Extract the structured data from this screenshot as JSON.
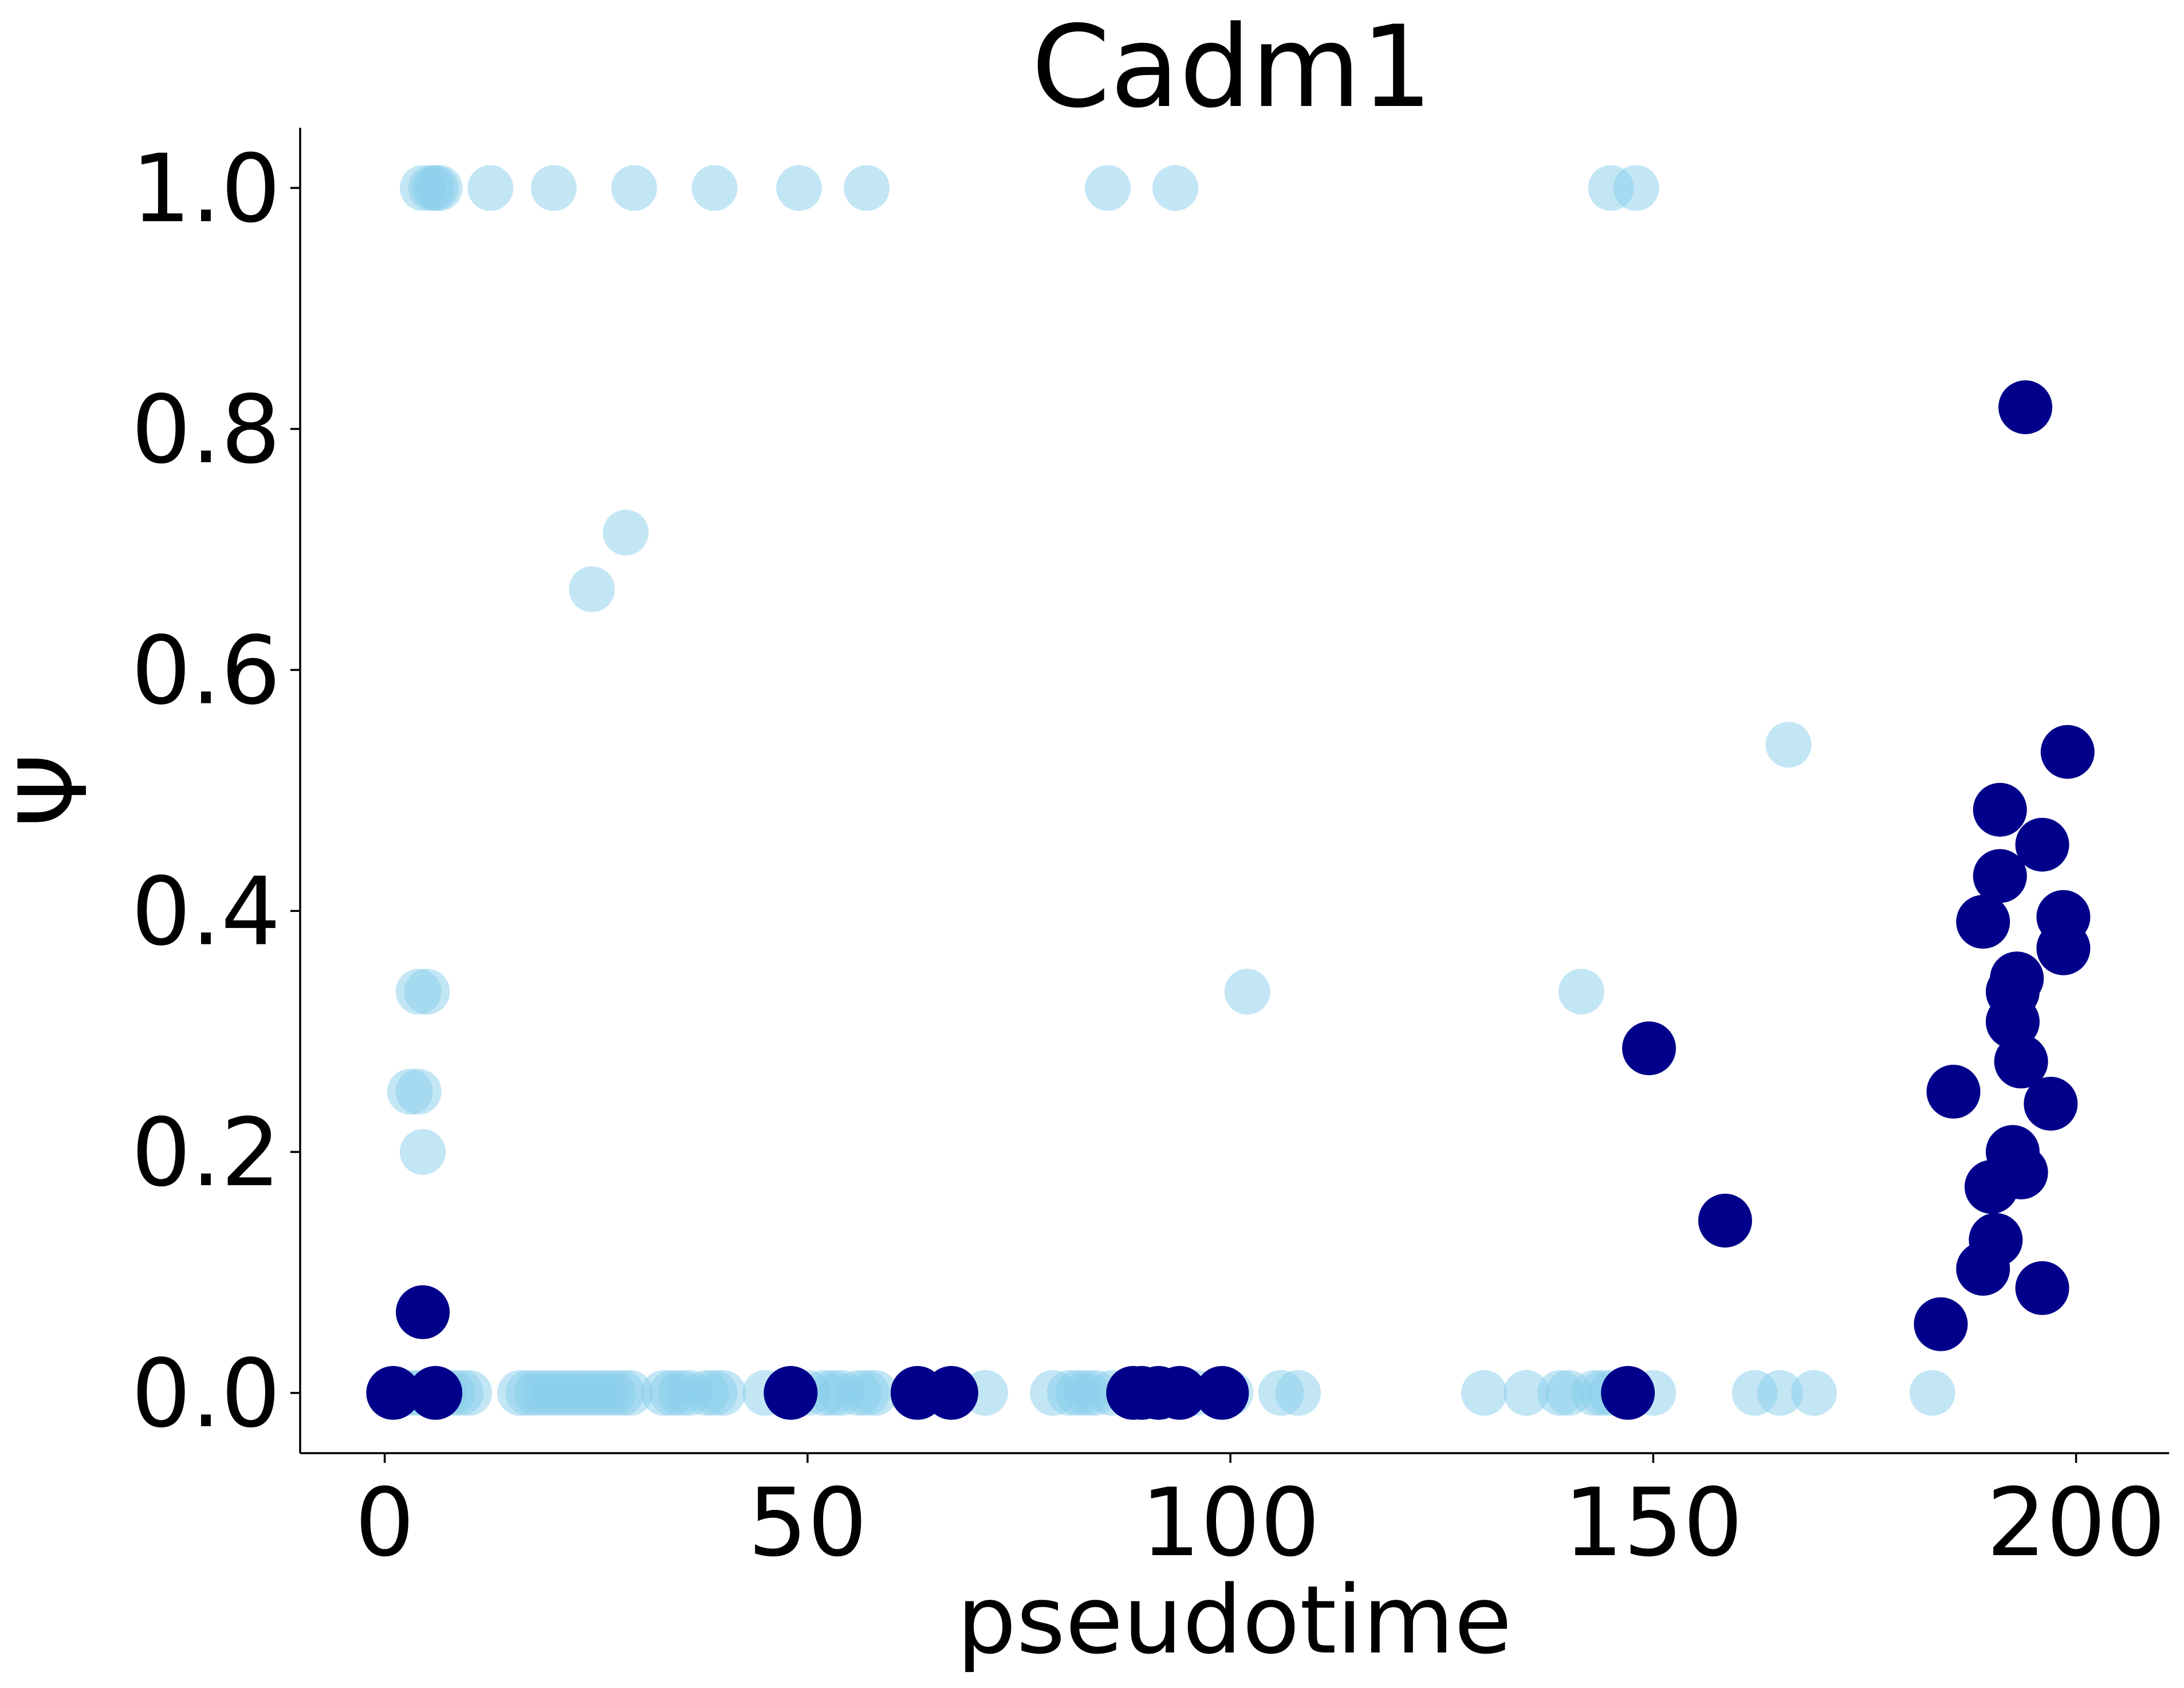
{
  "chart_data": {
    "type": "scatter",
    "title": "Cadm1",
    "xlabel": "pseudotime",
    "ylabel": "Ψ",
    "xlim": [
      -10,
      211
    ],
    "ylim": [
      -0.05,
      1.05
    ],
    "xticks": [
      0,
      50,
      100,
      150,
      200
    ],
    "yticks": [
      0.0,
      0.2,
      0.4,
      0.6,
      0.8,
      1.0
    ],
    "xtick_labels": [
      "0",
      "50",
      "100",
      "150",
      "200"
    ],
    "ytick_labels": [
      "0.0",
      "0.2",
      "0.4",
      "0.6",
      "0.8",
      "1.0"
    ],
    "grid": false,
    "legend": "none",
    "series": [
      {
        "color": "#87ceeb",
        "opacity": 0.5,
        "points": [
          [
            4.5,
            1.0
          ],
          [
            5.5,
            1.0
          ],
          [
            6.0,
            1.0
          ],
          [
            6.5,
            1.0
          ],
          [
            12.5,
            1.0
          ],
          [
            20,
            1.0
          ],
          [
            29.5,
            1.0
          ],
          [
            39,
            1.0
          ],
          [
            49,
            1.0
          ],
          [
            57,
            1.0
          ],
          [
            85.5,
            1.0
          ],
          [
            93.5,
            1.0
          ],
          [
            145,
            1.0
          ],
          [
            148,
            1.0
          ],
          [
            28.5,
            0.714
          ],
          [
            24.5,
            0.667
          ],
          [
            166,
            0.538
          ],
          [
            4.0,
            0.333
          ],
          [
            5.0,
            0.333
          ],
          [
            102,
            0.333
          ],
          [
            141.5,
            0.333
          ],
          [
            3.0,
            0.25
          ],
          [
            4.0,
            0.25
          ],
          [
            4.5,
            0.2
          ],
          [
            1.0,
            0.0
          ],
          [
            2.0,
            0.0
          ],
          [
            3.0,
            0.0
          ],
          [
            4.0,
            0.0
          ],
          [
            5.0,
            0.0
          ],
          [
            6.0,
            0.0
          ],
          [
            7.0,
            0.0
          ],
          [
            8.0,
            0.0
          ],
          [
            9.0,
            0.0
          ],
          [
            10.0,
            0.0
          ],
          [
            16,
            0.0
          ],
          [
            17,
            0.0
          ],
          [
            18,
            0.0
          ],
          [
            19,
            0.0
          ],
          [
            20,
            0.0
          ],
          [
            21,
            0.0
          ],
          [
            22,
            0.0
          ],
          [
            23,
            0.0
          ],
          [
            24,
            0.0
          ],
          [
            25,
            0.0
          ],
          [
            26,
            0.0
          ],
          [
            27,
            0.0
          ],
          [
            28,
            0.0
          ],
          [
            29,
            0.0
          ],
          [
            33,
            0.0
          ],
          [
            34,
            0.0
          ],
          [
            35,
            0.0
          ],
          [
            36,
            0.0
          ],
          [
            38,
            0.0
          ],
          [
            39,
            0.0
          ],
          [
            40,
            0.0
          ],
          [
            45,
            0.0
          ],
          [
            48,
            0.0
          ],
          [
            50,
            0.0
          ],
          [
            52,
            0.0
          ],
          [
            53,
            0.0
          ],
          [
            54,
            0.0
          ],
          [
            56,
            0.0
          ],
          [
            57,
            0.0
          ],
          [
            58,
            0.0
          ],
          [
            63,
            0.0
          ],
          [
            67,
            0.0
          ],
          [
            71,
            0.0
          ],
          [
            79,
            0.0
          ],
          [
            81,
            0.0
          ],
          [
            82,
            0.0
          ],
          [
            83,
            0.0
          ],
          [
            84,
            0.0
          ],
          [
            86,
            0.0
          ],
          [
            88,
            0.0
          ],
          [
            89,
            0.0
          ],
          [
            96,
            0.0
          ],
          [
            99,
            0.0
          ],
          [
            100,
            0.0
          ],
          [
            106,
            0.0
          ],
          [
            108,
            0.0
          ],
          [
            130,
            0.0
          ],
          [
            135,
            0.0
          ],
          [
            139,
            0.0
          ],
          [
            140,
            0.0
          ],
          [
            143,
            0.0
          ],
          [
            144,
            0.0
          ],
          [
            145,
            0.0
          ],
          [
            150,
            0.0
          ],
          [
            162,
            0.0
          ],
          [
            165,
            0.0
          ],
          [
            169,
            0.0
          ],
          [
            183,
            0.0
          ]
        ]
      },
      {
        "color": "#00008b",
        "opacity": 1.0,
        "points": [
          [
            194,
            0.818
          ],
          [
            199,
            0.532
          ],
          [
            191,
            0.484
          ],
          [
            196,
            0.455
          ],
          [
            191,
            0.429
          ],
          [
            198.5,
            0.395
          ],
          [
            189,
            0.391
          ],
          [
            198.5,
            0.369
          ],
          [
            193,
            0.344
          ],
          [
            192.5,
            0.333
          ],
          [
            192.5,
            0.308
          ],
          [
            149.5,
            0.286
          ],
          [
            193.5,
            0.275
          ],
          [
            185.5,
            0.25
          ],
          [
            197,
            0.24
          ],
          [
            192.5,
            0.2
          ],
          [
            193.5,
            0.183
          ],
          [
            190,
            0.171
          ],
          [
            158.5,
            0.143
          ],
          [
            190.5,
            0.127
          ],
          [
            189,
            0.103
          ],
          [
            196,
            0.087
          ],
          [
            4.5,
            0.067
          ],
          [
            184,
            0.057
          ],
          [
            1.0,
            0.0
          ],
          [
            6.0,
            0.0
          ],
          [
            48,
            0.0
          ],
          [
            63,
            0.0
          ],
          [
            67,
            0.0
          ],
          [
            88.5,
            0.0
          ],
          [
            89.5,
            0.0
          ],
          [
            91.5,
            0.0
          ],
          [
            94,
            0.0
          ],
          [
            99,
            0.0
          ],
          [
            147,
            0.0
          ]
        ]
      }
    ]
  }
}
